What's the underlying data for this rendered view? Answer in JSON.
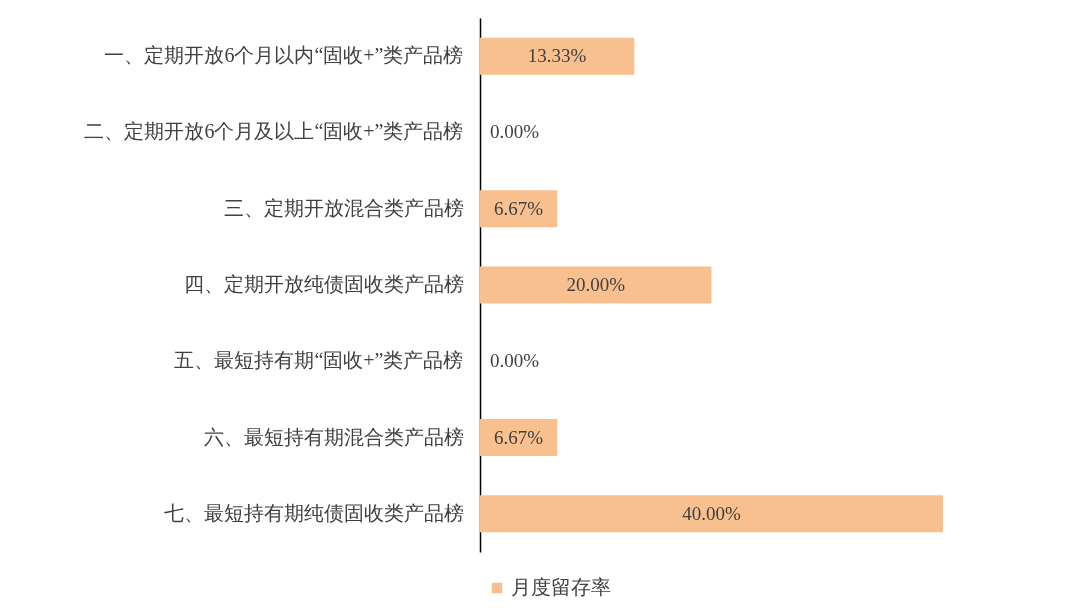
{
  "chart_data": {
    "type": "bar",
    "orientation": "horizontal",
    "categories": [
      "一、定期开放6个月以内“固收+”类产品榜",
      "二、定期开放6个月及以上“固收+”类产品榜",
      "三、定期开放混合类产品榜",
      "四、定期开放纯债固收类产品榜",
      "五、最短持有期“固收+”类产品榜",
      "六、最短持有期混合类产品榜",
      "七、最短持有期纯债固收类产品榜"
    ],
    "series": [
      {
        "name": "月度留存率",
        "color": "#f9c08f",
        "values": [
          13.33,
          0,
          6.67,
          20,
          0,
          6.67,
          40
        ],
        "value_labels": [
          "13.33%",
          "0.00%",
          "6.67%",
          "20.00%",
          "0.00%",
          "6.67%",
          "40.00%"
        ]
      }
    ],
    "legend": "bottom",
    "tick_labels": "y"
  }
}
